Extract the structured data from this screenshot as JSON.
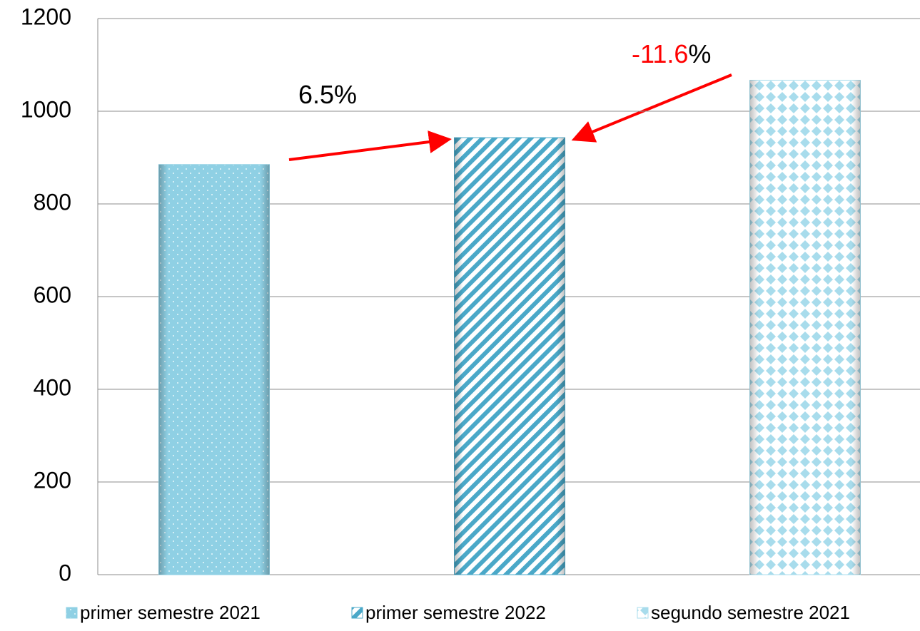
{
  "chart_data": {
    "type": "bar",
    "series": [
      {
        "name": "primer semestre 2021",
        "color": "#8fd0e4",
        "pattern": "dots",
        "values": [
          885
        ]
      },
      {
        "name": "primer semestre 2022",
        "color": "#4aa8c8",
        "pattern": "stripes",
        "values": [
          943
        ]
      },
      {
        "name": "segundo semestre 2021",
        "color": "#a8dcec",
        "pattern": "diamonds",
        "values": [
          1067
        ]
      }
    ],
    "ylim": [
      0,
      1200
    ],
    "yticks": [
      0,
      200,
      400,
      600,
      800,
      1000,
      1200
    ],
    "grid": true,
    "annotations": [
      {
        "parts": [
          {
            "text": "6.5",
            "color": "#000000"
          },
          {
            "text": "%",
            "color": "#000000"
          }
        ]
      },
      {
        "parts": [
          {
            "text": "-11.6",
            "color": "#ff0000"
          },
          {
            "text": "%",
            "color": "#000000"
          }
        ]
      }
    ]
  }
}
